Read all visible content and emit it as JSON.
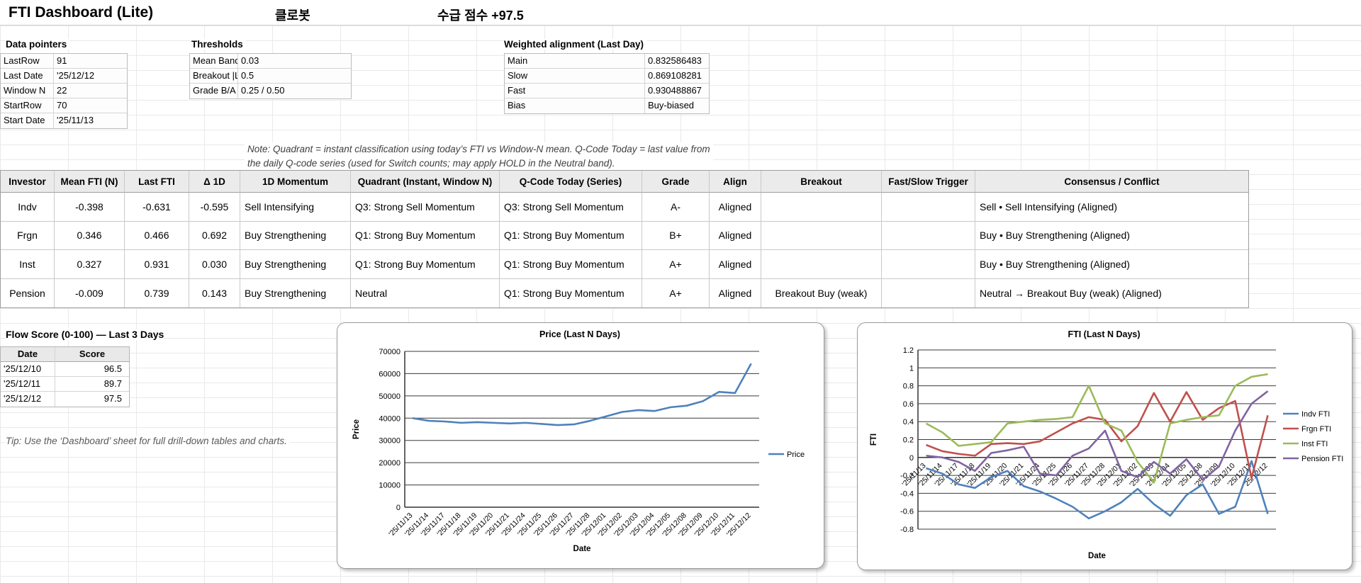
{
  "header": {
    "title": "FTI Dashboard (Lite)",
    "stock_name": "클로봇",
    "score_label": "수급 점수 +97.5"
  },
  "data_pointers": {
    "title": "Data pointers",
    "rows": [
      [
        "LastRow",
        "91"
      ],
      [
        "Last Date",
        "'25/12/12"
      ],
      [
        "Window N",
        "22"
      ],
      [
        "StartRow",
        "70"
      ],
      [
        "Start Date",
        "'25/11/13"
      ]
    ]
  },
  "thresholds": {
    "title": "Thresholds",
    "rows": [
      [
        "Mean Band",
        "0.03"
      ],
      [
        "Breakout |L",
        "0.5"
      ],
      [
        "Grade B/A",
        "0.25 / 0.50"
      ]
    ]
  },
  "weighted_alignment": {
    "title": "Weighted alignment (Last Day)",
    "rows": [
      [
        "Main",
        "0.832586483"
      ],
      [
        "Slow",
        "0.869108281"
      ],
      [
        "Fast",
        "0.930488867"
      ],
      [
        "Bias",
        "Buy-biased"
      ]
    ]
  },
  "note": {
    "line1": "Note: Quadrant = instant classification using today’s FTI vs Window-N mean. Q-Code Today = last value from",
    "line2": "the daily Q-code series (used for Switch counts; may apply HOLD in the Neutral band)."
  },
  "investor_table": {
    "columns": [
      "Investor",
      "Mean FTI (N)",
      "Last FTI",
      "Δ 1D",
      "1D Momentum",
      "Quadrant (Instant, Window N)",
      "Q-Code Today (Series)",
      "Grade",
      "Align",
      "Breakout",
      "Fast/Slow Trigger",
      "Consensus / Conflict"
    ],
    "rows": [
      [
        "Indv",
        "-0.398",
        "-0.631",
        "-0.595",
        "Sell Intensifying",
        "Q3: Strong Sell Momentum",
        "Q3: Strong Sell Momentum",
        "A-",
        "Aligned",
        "",
        "",
        "Sell • Sell Intensifying (Aligned)"
      ],
      [
        "Frgn",
        "0.346",
        "0.466",
        "0.692",
        "Buy Strengthening",
        "Q1: Strong Buy Momentum",
        "Q1: Strong Buy Momentum",
        "B+",
        "Aligned",
        "",
        "",
        "Buy • Buy Strengthening (Aligned)"
      ],
      [
        "Inst",
        "0.327",
        "0.931",
        "0.030",
        "Buy Strengthening",
        "Q1: Strong Buy Momentum",
        "Q1: Strong Buy Momentum",
        "A+",
        "Aligned",
        "",
        "",
        "Buy • Buy Strengthening (Aligned)"
      ],
      [
        "Pension",
        "-0.009",
        "0.739",
        "0.143",
        "Buy Strengthening",
        "Neutral",
        "Q1: Strong Buy Momentum",
        "A+",
        "Aligned",
        "Breakout Buy (weak)",
        "",
        "Neutral → Breakout Buy (weak) (Aligned)"
      ]
    ]
  },
  "flow_score": {
    "title": "Flow Score (0-100) — Last 3 Days",
    "columns": [
      "Date",
      "Score"
    ],
    "rows": [
      [
        "'25/12/10",
        "96.5"
      ],
      [
        "'25/12/11",
        "89.7"
      ],
      [
        "'25/12/12",
        "97.5"
      ]
    ]
  },
  "tip": "Tip: Use the ‘Dashboard’ sheet for full drill-down tables and charts.",
  "chart_data": [
    {
      "type": "line",
      "title": "Price (Last N Days)",
      "xlabel": "Date",
      "ylabel": "Price",
      "ylim": [
        0,
        70000
      ],
      "ystep": 10000,
      "grid": true,
      "legend_position": "right",
      "categories": [
        "'25/11/13",
        "'25/11/14",
        "'25/11/17",
        "'25/11/18",
        "'25/11/19",
        "'25/11/20",
        "'25/11/21",
        "'25/11/24",
        "'25/11/25",
        "'25/11/26",
        "'25/11/27",
        "'25/11/28",
        "'25/12/01",
        "'25/12/02",
        "'25/12/03",
        "'25/12/04",
        "'25/12/05",
        "'25/12/08",
        "'25/12/09",
        "'25/12/10",
        "'25/12/11",
        "'25/12/12"
      ],
      "series": [
        {
          "name": "Price",
          "color": "#4F81BD",
          "values": [
            40000,
            38800,
            38500,
            37900,
            38200,
            37900,
            37600,
            37900,
            37400,
            36900,
            37200,
            38800,
            40800,
            42800,
            43600,
            43200,
            44900,
            45600,
            47600,
            51800,
            51300,
            64500
          ]
        }
      ]
    },
    {
      "type": "line",
      "title": "FTI (Last N Days)",
      "xlabel": "Date",
      "ylabel": "FTI",
      "ylim": [
        -0.8,
        1.2
      ],
      "ystep": 0.2,
      "grid": true,
      "legend_position": "right",
      "categories": [
        "'25/11/13",
        "'25/11/14",
        "'25/11/17",
        "'25/11/18",
        "'25/11/19",
        "'25/11/20",
        "'25/11/21",
        "'25/11/24",
        "'25/11/25",
        "'25/11/26",
        "'25/11/27",
        "'25/11/28",
        "'25/12/01",
        "'25/12/02",
        "'25/12/03",
        "'25/12/04",
        "'25/12/05",
        "'25/12/08",
        "'25/12/09",
        "'25/12/10",
        "'25/12/11",
        "'25/12/12"
      ],
      "series": [
        {
          "name": "Indv FTI",
          "color": "#4F81BD",
          "values": [
            -0.12,
            -0.18,
            -0.3,
            -0.34,
            -0.22,
            -0.15,
            -0.32,
            -0.38,
            -0.46,
            -0.55,
            -0.68,
            -0.6,
            -0.5,
            -0.35,
            -0.52,
            -0.65,
            -0.42,
            -0.3,
            -0.63,
            -0.55,
            -0.04,
            -0.63
          ]
        },
        {
          "name": "Frgn FTI",
          "color": "#C0504D",
          "values": [
            0.14,
            0.07,
            0.04,
            0.02,
            0.15,
            0.16,
            0.15,
            0.18,
            0.28,
            0.38,
            0.45,
            0.42,
            0.18,
            0.35,
            0.72,
            0.4,
            0.73,
            0.42,
            0.55,
            0.63,
            -0.23,
            0.47
          ]
        },
        {
          "name": "Inst FTI",
          "color": "#9BBB59",
          "values": [
            0.38,
            0.28,
            0.13,
            0.15,
            0.17,
            0.38,
            0.4,
            0.42,
            0.43,
            0.45,
            0.8,
            0.38,
            0.3,
            -0.05,
            -0.28,
            0.38,
            0.42,
            0.45,
            0.47,
            0.8,
            0.9,
            0.93
          ]
        },
        {
          "name": "Pension FTI",
          "color": "#8064A2",
          "values": [
            0.02,
            0.0,
            -0.05,
            -0.15,
            0.05,
            0.08,
            0.12,
            -0.18,
            -0.2,
            0.02,
            0.1,
            0.3,
            -0.15,
            -0.22,
            -0.05,
            -0.18,
            -0.02,
            -0.25,
            -0.1,
            0.3,
            0.6,
            0.74
          ]
        }
      ]
    }
  ]
}
